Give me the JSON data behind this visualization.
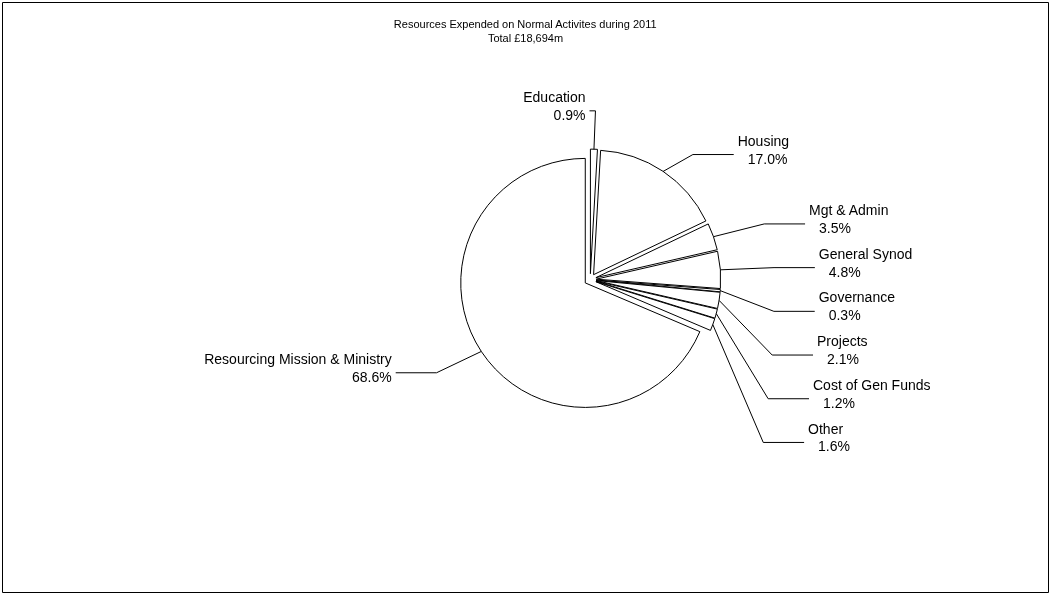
{
  "chart_data": {
    "type": "pie",
    "title": "Resources Expended on Normal Activites during 2011",
    "subtitle": "Total £18,694m",
    "categories": [
      "Education",
      "Housing",
      "Mgt & Admin",
      "General Synod",
      "Governance",
      "Projects",
      "Cost of Gen Funds",
      "Other",
      "Resourcing Mission & Ministry"
    ],
    "values": [
      0.9,
      17.0,
      3.5,
      4.8,
      0.3,
      2.1,
      1.2,
      1.6,
      68.6
    ],
    "value_labels": [
      "0.9%",
      "17.0%",
      "3.5%",
      "4.8%",
      "0.3%",
      "2.1%",
      "1.2%",
      "1.6%",
      "68.6%"
    ],
    "colors": [
      "#ffffff",
      "#ffffff",
      "#ffffff",
      "#ffffff",
      "#ffffff",
      "#ffffff",
      "#ffffff",
      "#ffffff",
      "#ffffff"
    ]
  }
}
